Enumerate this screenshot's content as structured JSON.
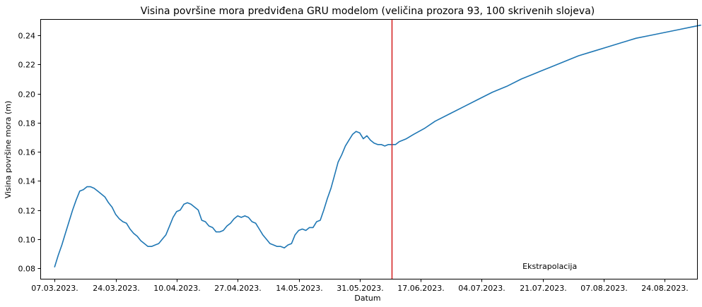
{
  "chart_data": {
    "type": "line",
    "title": "Visina površine mora predviđena GRU modelom (veličina prozora 93, 100 skrivenih slojeva)",
    "xlabel": "Datum",
    "ylabel": "Visina površine mora (m)",
    "x_ticks": [
      "07.03.2023.",
      "24.03.2023.",
      "10.04.2023.",
      "27.04.2023.",
      "14.05.2023.",
      "31.05.2023.",
      "17.06.2023.",
      "04.07.2023.",
      "21.07.2023.",
      "07.08.2023.",
      "24.08.2023."
    ],
    "y_ticks": [
      "0.08",
      "0.10",
      "0.12",
      "0.14",
      "0.16",
      "0.18",
      "0.20",
      "0.22",
      "0.24"
    ],
    "x_start": "2023-03-07",
    "xlim": [
      "2023-03-03",
      "2023-09-02"
    ],
    "ylim": [
      0.0728,
      0.2512
    ],
    "grid": false,
    "line_color": "#1f77b4",
    "vline": {
      "x": "2023-06-09",
      "color": "#d62728"
    },
    "annotation": {
      "text": "Ekstrapolacija",
      "x": "2023-07-21",
      "y": 0.08,
      "color": "#d62728"
    },
    "series": [
      {
        "x": [
          0,
          1,
          2,
          3,
          4,
          5,
          6,
          7,
          8,
          9,
          10,
          11,
          12,
          13,
          14,
          15,
          16,
          17,
          18,
          19,
          20,
          21,
          22,
          23,
          24,
          25,
          26,
          27,
          28,
          29,
          30,
          31,
          32,
          33,
          34,
          35,
          36,
          37,
          38,
          39,
          40,
          41,
          42,
          43,
          44,
          45,
          46,
          47,
          48,
          49,
          50,
          51,
          52,
          53,
          54,
          55,
          56,
          57,
          58,
          59,
          60,
          61,
          62,
          63,
          64,
          65,
          66,
          67,
          68,
          69,
          70,
          71,
          72,
          73,
          74,
          75,
          76,
          77,
          78,
          79,
          80,
          81,
          82,
          83,
          84,
          85,
          86,
          87,
          88,
          89,
          90,
          91,
          92,
          93,
          94,
          95,
          96,
          98,
          100,
          103,
          106,
          110,
          114,
          118,
          122,
          126,
          130,
          134,
          138,
          142,
          146,
          150,
          154,
          158,
          162,
          166,
          170,
          174,
          178,
          180
        ],
        "y": [
          0.081,
          0.089,
          0.096,
          0.104,
          0.112,
          0.12,
          0.127,
          0.133,
          0.134,
          0.136,
          0.136,
          0.135,
          0.133,
          0.131,
          0.129,
          0.125,
          0.122,
          0.117,
          0.114,
          0.112,
          0.111,
          0.107,
          0.104,
          0.102,
          0.099,
          0.097,
          0.095,
          0.095,
          0.096,
          0.097,
          0.1,
          0.103,
          0.109,
          0.115,
          0.119,
          0.12,
          0.124,
          0.125,
          0.124,
          0.122,
          0.12,
          0.113,
          0.112,
          0.109,
          0.108,
          0.105,
          0.105,
          0.106,
          0.109,
          0.111,
          0.114,
          0.116,
          0.115,
          0.116,
          0.115,
          0.112,
          0.111,
          0.107,
          0.103,
          0.1,
          0.097,
          0.096,
          0.095,
          0.095,
          0.094,
          0.096,
          0.097,
          0.103,
          0.106,
          0.107,
          0.106,
          0.108,
          0.108,
          0.112,
          0.113,
          0.12,
          0.128,
          0.135,
          0.144,
          0.153,
          0.158,
          0.164,
          0.168,
          0.172,
          0.174,
          0.173,
          0.169,
          0.171,
          0.168,
          0.166,
          0.165,
          0.165,
          0.164,
          0.165,
          0.165,
          0.165,
          0.167,
          0.169,
          0.172,
          0.176,
          0.181,
          0.186,
          0.191,
          0.196,
          0.201,
          0.205,
          0.21,
          0.214,
          0.218,
          0.222,
          0.226,
          0.229,
          0.232,
          0.235,
          0.238,
          0.24,
          0.242,
          0.244,
          0.246,
          0.247
        ]
      }
    ]
  }
}
